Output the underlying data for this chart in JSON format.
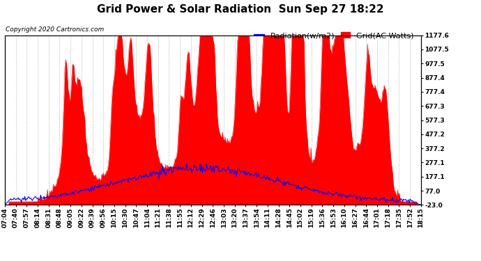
{
  "title": "Grid Power & Solar Radiation  Sun Sep 27 18:22",
  "copyright": "Copyright 2020 Cartronics.com",
  "legend_radiation": "Radiation(w/m2)",
  "legend_grid": "Grid(AC Watts)",
  "radiation_color": "blue",
  "grid_color": "red",
  "background_color": "#ffffff",
  "plot_bg_color": "#ffffff",
  "y_right_ticks": [
    1177.6,
    1077.5,
    977.5,
    877.4,
    777.4,
    677.3,
    577.3,
    477.2,
    377.2,
    277.1,
    177.1,
    77.0,
    -23.0
  ],
  "ylim": [
    -23.0,
    1177.6
  ],
  "x_tick_labels": [
    "07:04",
    "07:40",
    "07:57",
    "08:14",
    "08:31",
    "08:48",
    "09:05",
    "09:22",
    "09:39",
    "09:56",
    "10:15",
    "10:30",
    "10:47",
    "11:04",
    "11:21",
    "11:38",
    "11:55",
    "12:12",
    "12:29",
    "12:46",
    "13:03",
    "13:20",
    "13:37",
    "13:54",
    "14:11",
    "14:28",
    "14:45",
    "15:02",
    "15:19",
    "15:36",
    "15:53",
    "16:10",
    "16:27",
    "16:44",
    "17:01",
    "17:18",
    "17:35",
    "17:52",
    "18:15"
  ],
  "title_fontsize": 11,
  "tick_fontsize": 6.5,
  "legend_fontsize": 8,
  "copyright_fontsize": 6.5,
  "grid_color_line": "#aaaaaa",
  "grid_alpha": 0.7
}
